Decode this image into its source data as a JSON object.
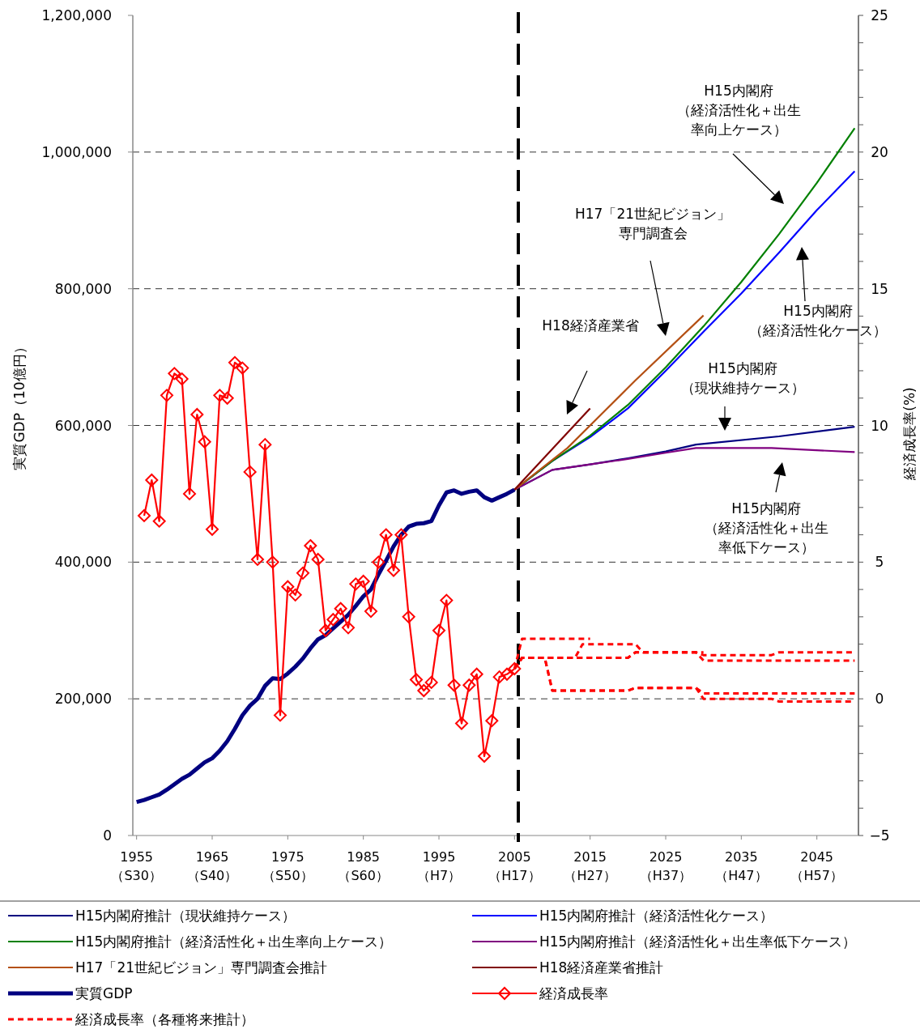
{
  "chart_data": {
    "type": "line",
    "ylabel": "実質GDP（10億円）",
    "y2label": "経済成長率(%)",
    "grid": "y",
    "legend": "bottom",
    "xlim": [
      1954.5,
      2050.5
    ],
    "ylim": [
      0,
      1200000
    ],
    "y2lim": [
      -5,
      25
    ],
    "xticks": [
      1955,
      1965,
      1975,
      1985,
      1995,
      2005,
      2015,
      2025,
      2035,
      2045
    ],
    "yticks": [
      0,
      {
        "value": 200000,
        "label": "200,000"
      },
      {
        "value": 400000,
        "label": "400,000"
      },
      {
        "value": 600000,
        "label": "600,000"
      },
      {
        "value": 800000,
        "label": "800,000"
      },
      {
        "value": 1000000,
        "label": "1,000,000"
      },
      {
        "value": 1200000,
        "label": "1,200,000"
      }
    ],
    "y2ticks": [
      {
        "value": -5,
        "label": "−5"
      },
      {
        "value": -4,
        "label": null
      },
      {
        "value": -3,
        "label": null
      },
      {
        "value": -2,
        "label": null
      },
      {
        "value": -1,
        "label": null
      },
      0,
      {
        "value": 1,
        "label": null
      },
      {
        "value": 2,
        "label": null
      },
      {
        "value": 3,
        "label": null
      },
      {
        "value": 4,
        "label": null
      },
      5,
      {
        "value": 6,
        "label": null
      },
      {
        "value": 7,
        "label": null
      },
      {
        "value": 8,
        "label": null
      },
      {
        "value": 9,
        "label": null
      },
      10,
      {
        "value": 11,
        "label": null
      },
      {
        "value": 12,
        "label": null
      },
      {
        "value": 13,
        "label": null
      },
      {
        "value": 14,
        "label": null
      },
      15,
      {
        "value": 16,
        "label": null
      },
      {
        "value": 17,
        "label": null
      },
      {
        "value": 18,
        "label": null
      },
      {
        "value": 19,
        "label": null
      },
      20,
      {
        "value": 21,
        "label": null
      },
      {
        "value": 22,
        "label": null
      },
      {
        "value": 23,
        "label": null
      },
      {
        "value": 24,
        "label": null
      },
      25
    ],
    "ref_lines": [
      {
        "axis": "x",
        "value": 2005.5,
        "color": "#000000",
        "line_style": "dashed"
      }
    ],
    "annotations": [
      "H15内閣府（経済活性化＋出生率向上ケース）",
      "H17「21世紀ビジョン」専門調査会",
      "H15内閣府（経済活性化ケース）",
      "H18経済産業省",
      "H15内閣府（現状維持ケース）",
      "H15内閣府（経済活性化＋出生率低下ケース）",
      "（S30）",
      "（S40）",
      "（S50）",
      "（S60）",
      "（H7）",
      "（H17）",
      "（H27）",
      "（H37）",
      "（H47）",
      "（H57）"
    ],
    "series": [
      {
        "name": "H15内閣府推計（現状維持ケース）",
        "color": "#000080",
        "type": "line",
        "x": [
          2005,
          2010,
          2015,
          2020,
          2025,
          2029,
          2040,
          2050
        ],
        "values": [
          506000,
          535000,
          543000,
          552000,
          562000,
          572000,
          584000,
          598000
        ]
      },
      {
        "name": "H15内閣府推計（経済活性化ケース）",
        "color": "#0000ff",
        "type": "line",
        "x": [
          2005,
          2010,
          2015,
          2020,
          2025,
          2030,
          2035,
          2040,
          2045,
          2050
        ],
        "values": [
          506000,
          548000,
          583000,
          625000,
          680000,
          737000,
          793000,
          853000,
          915000,
          972000
        ]
      },
      {
        "name": "H15内閣府推計（経済活性化＋出生率向上ケース）",
        "color": "#008000",
        "type": "line",
        "x": [
          2005,
          2010,
          2015,
          2020,
          2025,
          2030,
          2035,
          2040,
          2045,
          2050
        ],
        "values": [
          506000,
          548000,
          585000,
          630000,
          685000,
          745000,
          810000,
          880000,
          955000,
          1035000
        ]
      },
      {
        "name": "H15内閣府推計（経済活性化＋出生率低下ケース）",
        "color": "#800080",
        "type": "line",
        "x": [
          2005,
          2010,
          2015,
          2020,
          2025,
          2029,
          2039,
          2050
        ],
        "values": [
          506000,
          535000,
          543000,
          551000,
          560000,
          567000,
          567000,
          561000
        ]
      },
      {
        "name": "H17「21世紀ビジョン」専門調査会推計",
        "color": "#b45014",
        "type": "line",
        "x": [
          2005,
          2012,
          2021,
          2030
        ],
        "values": [
          506000,
          567000,
          666000,
          761000
        ]
      },
      {
        "name": "H18経済産業省推計",
        "color": "#800000",
        "type": "line",
        "x": [
          2005,
          2015
        ],
        "values": [
          506000,
          625000
        ]
      },
      {
        "name": "実質GDP",
        "color": "#000080",
        "type": "line",
        "x": [
          1955,
          1956,
          1957,
          1958,
          1959,
          1960,
          1961,
          1962,
          1963,
          1964,
          1965,
          1966,
          1967,
          1968,
          1969,
          1970,
          1971,
          1972,
          1973,
          1974,
          1975,
          1976,
          1977,
          1978,
          1979,
          1980,
          1981,
          1982,
          1983,
          1984,
          1985,
          1986,
          1987,
          1988,
          1989,
          1990,
          1991,
          1992,
          1993,
          1994,
          1995,
          1996,
          1997,
          1998,
          1999,
          2000,
          2001,
          2002,
          2003,
          2004,
          2005
        ],
        "values": [
          49000,
          52000,
          56000,
          60000,
          67000,
          75000,
          83000,
          89000,
          98000,
          107000,
          113000,
          124000,
          138000,
          156000,
          176000,
          190000,
          200000,
          219000,
          230000,
          229000,
          237000,
          247000,
          259000,
          274000,
          287000,
          293000,
          303000,
          313000,
          323000,
          336000,
          350000,
          360000,
          382000,
          402000,
          423000,
          440000,
          452000,
          456000,
          457000,
          460000,
          483000,
          502000,
          505000,
          500000,
          503000,
          505000,
          495000,
          490000,
          495000,
          500000,
          506000
        ]
      },
      {
        "name": "経済成長率",
        "color": "#ff0000",
        "type": "line",
        "axis": "y2",
        "marker": "diamond",
        "x": [
          1956,
          1957,
          1958,
          1959,
          1960,
          1961,
          1962,
          1963,
          1964,
          1965,
          1966,
          1967,
          1968,
          1969,
          1970,
          1971,
          1972,
          1973,
          1974,
          1975,
          1976,
          1977,
          1978,
          1979,
          1980,
          1981,
          1982,
          1983,
          1984,
          1985,
          1986,
          1987,
          1988,
          1989,
          1990,
          1991,
          1992,
          1993,
          1994,
          1995,
          1996,
          1997,
          1998,
          1999,
          2000,
          2001,
          2002,
          2003,
          2004,
          2005
        ],
        "values": [
          6.7,
          8.0,
          6.5,
          11.1,
          11.9,
          11.7,
          7.5,
          10.4,
          9.4,
          6.2,
          11.1,
          11.0,
          12.3,
          12.1,
          8.3,
          5.1,
          9.3,
          5.0,
          -0.6,
          4.1,
          3.8,
          4.6,
          5.6,
          5.1,
          2.5,
          2.9,
          3.3,
          2.6,
          4.2,
          4.3,
          3.2,
          5.0,
          6.0,
          4.7,
          6.0,
          3.0,
          0.7,
          0.3,
          0.6,
          2.5,
          3.6,
          0.5,
          -0.9,
          0.5,
          0.9,
          -2.1,
          -0.8,
          0.8,
          0.9,
          1.1
        ]
      },
      {
        "name": "経済成長率（各種将来推計）",
        "color": "#ff0000",
        "type": "line",
        "axis": "y2",
        "line_style": "dashed",
        "x": [
          2005,
          2006,
          2015
        ],
        "values": [
          1.1,
          2.2,
          2.2
        ]
      },
      {
        "color": "#ff0000",
        "type": "line",
        "axis": "y2",
        "line_style": "dashed",
        "x": [
          2005,
          2006,
          2013,
          2014,
          2021,
          2022,
          2030
        ],
        "values": [
          1.1,
          1.5,
          1.5,
          2.0,
          2.0,
          1.7,
          1.7
        ]
      },
      {
        "color": "#ff0000",
        "type": "line",
        "axis": "y2",
        "line_style": "dashed",
        "x": [
          2005,
          2006,
          2020,
          2021,
          2029,
          2030,
          2039,
          2040,
          2050
        ],
        "values": [
          1.1,
          1.5,
          1.5,
          1.7,
          1.7,
          1.6,
          1.6,
          1.7,
          1.7
        ]
      },
      {
        "color": "#ff0000",
        "type": "line",
        "axis": "y2",
        "line_style": "dashed",
        "x": [
          2005,
          2006,
          2020,
          2021,
          2029,
          2030,
          2050
        ],
        "values": [
          1.1,
          1.5,
          1.5,
          1.7,
          1.7,
          1.4,
          1.4
        ]
      },
      {
        "color": "#ff0000",
        "type": "line",
        "axis": "y2",
        "line_style": "dashed",
        "x": [
          2005,
          2006,
          2009,
          2010,
          2020,
          2021,
          2029,
          2030,
          2050
        ],
        "values": [
          1.1,
          1.5,
          1.5,
          0.3,
          0.3,
          0.4,
          0.4,
          0.2,
          0.2
        ]
      },
      {
        "color": "#ff0000",
        "type": "line",
        "axis": "y2",
        "line_style": "dashed",
        "x": [
          2005,
          2006,
          2009,
          2010,
          2020,
          2021,
          2029,
          2030,
          2039,
          2040,
          2050
        ],
        "values": [
          1.1,
          1.5,
          1.5,
          0.3,
          0.3,
          0.4,
          0.4,
          0.0,
          0.0,
          -0.1,
          -0.1
        ]
      }
    ]
  }
}
